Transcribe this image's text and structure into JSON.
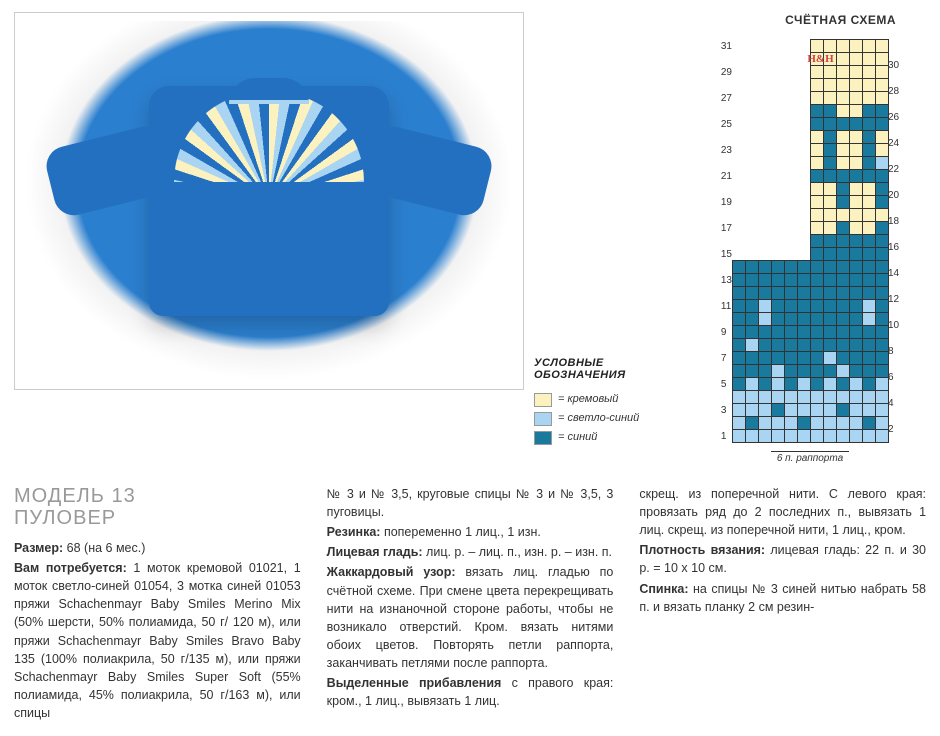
{
  "colors": {
    "cream": "#fcf2c0",
    "lightBlue": "#a9d5f2",
    "blue": "#1a7a9e",
    "mainBlue": "#2470c0"
  },
  "legend": {
    "heading": "УСЛОВНЫЕ ОБОЗНАЧЕНИЯ",
    "items": [
      {
        "label": "= кремовый",
        "color": "#fcf2c0"
      },
      {
        "label": "= светло-синий",
        "color": "#a9d5f2"
      },
      {
        "label": "= синий",
        "color": "#1a7a9e"
      }
    ]
  },
  "chart": {
    "title": "СЧЁТНАЯ СХЕМА",
    "watermark": "H&H",
    "repeat_label": "6 п. раппорта",
    "left_rows": [
      31,
      29,
      27,
      25,
      23,
      21,
      19,
      17,
      15,
      13,
      11,
      9,
      7,
      5,
      3,
      1
    ],
    "right_rows": [
      30,
      28,
      26,
      24,
      22,
      20,
      18,
      16,
      14,
      12,
      10,
      8,
      6,
      4,
      2
    ],
    "cols": 12,
    "rows": 31,
    "grid": [
      "eeeeee000000",
      "eeeeee000000",
      "eeeeee000000",
      "eeeeee000000",
      "eeeeee000000",
      "eeeeee220022",
      "eeeeee222222",
      "eeeeee020020",
      "eeeeee020020",
      "eeeeee020021",
      "eeeeee222222",
      "eeeeee002002",
      "eeeeee002002",
      "eeeeee000000",
      "eeeeee002002",
      "eeeeee222222",
      "eeeeee222222",
      "222222222222",
      "222222222222",
      "222222222222",
      "221222222212",
      "221222222212",
      "222222222222",
      "212222222222",
      "222222212222",
      "222122221222",
      "212121212121",
      "111111111111",
      "111211112111",
      "121112111121",
      "111111111111"
    ]
  },
  "article": {
    "heading_line1": "МОДЕЛЬ 13",
    "heading_line2": "ПУЛОВЕР",
    "col1": "Размер: 68 (на 6 мес.)\nВам потребуется: 1 моток кремовой 01021, 1 моток светло-синей 01054, 3 мотка синей 01053 пряжи Schachenmayr Baby Smiles Merino Mix (50% шерсти, 50% полиамида, 50 г/ 120 м), или пряжи Schachenmayr Baby Smiles Bravo Baby 135 (100% полиакрила, 50 г/135 м), или пряжи Schachenmayr Baby Smiles Super Soft (55% полиамида, 45% полиакрила, 50 г/163 м), или спицы",
    "col2": "№ 3 и № 3,5, круговые спицы № 3 и № 3,5, 3 пуговицы.\nРезинка: попеременно 1 лиц., 1 изн.\nЛицевая гладь: лиц. р. – лиц. п., изн. р. – изн. п.\nЖаккардовый узор: вязать лиц. гладью по счётной схеме. При смене цвета перекрещивать нити на изнаночной стороне работы, чтобы не возникало отверстий. Кром. вязать нитями обоих цветов. Повторять петли раппорта, заканчивать петлями после раппорта.\nВыделенные прибавления с правого края: кром., 1 лиц., вывязать 1 лиц.",
    "col3": "скрещ. из поперечной нити. С левого края: провязать ряд до 2 последних п., вывязать 1 лиц. скрещ. из поперечной нити, 1 лиц., кром.\nПлотность вязания: лицевая гладь: 22 п. и 30 р. = 10 х 10 см.\n\nСпинка: на спицы № 3 синей нитью набрать 58 п. и вязать планку 2 см резин-"
  }
}
